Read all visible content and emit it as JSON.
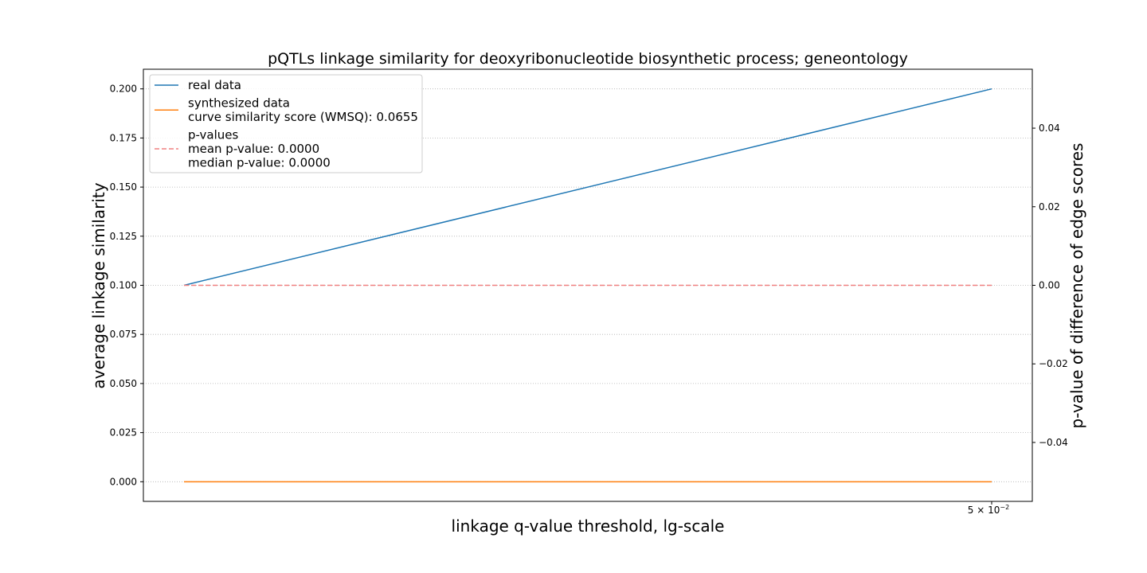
{
  "chart_data": {
    "type": "line",
    "title": "pQTLs linkage similarity for deoxyribonucleotide biosynthetic process; geneontology",
    "xlabel": "linkage q-value threshold, lg-scale",
    "ylabel": "average linkage similarity",
    "y2label": "p-value of difference of edge scores",
    "x_scale": "log",
    "x_tick_label": "5 × 10",
    "x_tick_exponent": "−2",
    "ylim": [
      -0.01,
      0.21
    ],
    "y_ticks": [
      "0.000",
      "0.025",
      "0.050",
      "0.075",
      "0.100",
      "0.125",
      "0.150",
      "0.175",
      "0.200"
    ],
    "y2lim": [
      -0.055,
      0.055
    ],
    "y2_ticks": [
      "−0.04",
      "−0.02",
      "0.00",
      "0.02",
      "0.04"
    ],
    "grid": "horizontal-dotted",
    "legend_position": "top-left",
    "series": [
      {
        "name": "real data",
        "color": "#1f77b4",
        "axis": "left",
        "points": [
          [
            0,
            0.1
          ],
          [
            1,
            0.2
          ]
        ]
      },
      {
        "name": "synthesized data",
        "color": "#ff7f0e",
        "axis": "left",
        "points": [
          [
            0,
            0.0
          ],
          [
            1,
            0.0
          ]
        ]
      },
      {
        "name": "p-values",
        "color": "#f08080",
        "axis": "right",
        "dashed": true,
        "points": [
          [
            0,
            0.0
          ],
          [
            1,
            0.0
          ]
        ]
      }
    ],
    "legend": [
      {
        "lines": [
          "real data"
        ],
        "color": "#1f77b4",
        "dashed": false
      },
      {
        "lines": [
          "synthesized data",
          "curve similarity score (WMSQ): 0.0655"
        ],
        "color": "#ff7f0e",
        "dashed": false
      },
      {
        "lines": [
          "p-values",
          "mean p-value: 0.0000",
          "median p-value: 0.0000"
        ],
        "color": "#f08080",
        "dashed": true
      }
    ]
  }
}
